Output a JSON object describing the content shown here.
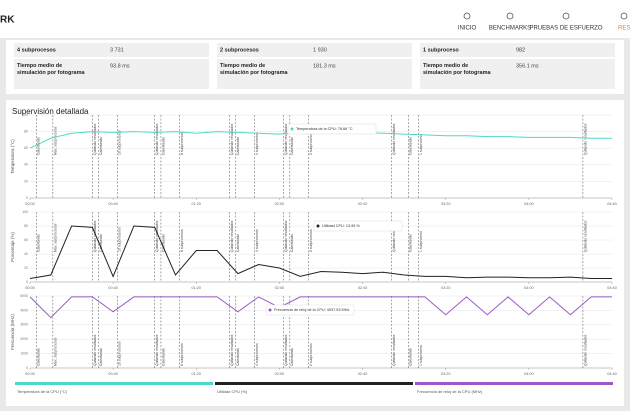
{
  "header": {
    "logo": "RK",
    "nav": [
      "INICIO",
      "BENCHMARKS",
      "PRUEBAS DE ESFUERZO",
      "RESU"
    ]
  },
  "stats": [
    {
      "label": "4 subprocesos",
      "value": "3 731",
      "time_label": "Tiempo medio de simulación por fotograma",
      "time_value": "93.8 ms"
    },
    {
      "label": "2 subprocesos",
      "value": "1 930",
      "time_label": "Tiempo medio de simulación por fotograma",
      "time_value": "181.3 ms"
    },
    {
      "label": "1 subproceso",
      "value": "982",
      "time_label": "Tiempo medio de simulación por fotograma",
      "time_value": "356.1 ms"
    }
  ],
  "section_title": "Supervisión detallada",
  "phases": [
    {
      "x": 3,
      "label": "Calentando"
    },
    {
      "x": 11,
      "label": "Máx. subprocesos"
    },
    {
      "x": 30,
      "label": "Quitando resultados"
    },
    {
      "x": 33,
      "label": "Calentando"
    },
    {
      "x": 42,
      "label": "16 subprocesos"
    },
    {
      "x": 60,
      "label": "Quitando resultados"
    },
    {
      "x": 63,
      "label": "Calentando"
    },
    {
      "x": 72,
      "label": "8 subprocesos"
    },
    {
      "x": 96,
      "label": "Quitando resultados"
    },
    {
      "x": 99,
      "label": "Calentando"
    },
    {
      "x": 108,
      "label": "4 subprocesos"
    },
    {
      "x": 122,
      "label": "Quitando resultados"
    },
    {
      "x": 125,
      "label": "Calentando"
    },
    {
      "x": 134,
      "label": "2 subprocesos"
    },
    {
      "x": 174,
      "label": "Quitando resultados"
    },
    {
      "x": 182,
      "label": "Calentando"
    },
    {
      "x": 187,
      "label": "1 subproceso"
    },
    {
      "x": 266,
      "label": "Quitando resultados"
    }
  ],
  "chart_data": [
    {
      "type": "line",
      "ylabel": "Temperatura (°C)",
      "annotation": "Temperatura de la CPU: 78.66 °C",
      "x": [
        0,
        10,
        20,
        30,
        40,
        50,
        60,
        70,
        80,
        90,
        100,
        110,
        120,
        130,
        140,
        150,
        160,
        170,
        180,
        190,
        200,
        210,
        220,
        230,
        240,
        250,
        260,
        270,
        280
      ],
      "xlim": [
        0,
        280
      ],
      "xticks": [
        {
          "value": 0,
          "label": "00:00"
        },
        {
          "value": 40,
          "label": "00:40"
        },
        {
          "value": 80,
          "label": "01:20"
        },
        {
          "value": 120,
          "label": "02:00"
        },
        {
          "value": 160,
          "label": "02:40"
        },
        {
          "value": 200,
          "label": "03:20"
        },
        {
          "value": 240,
          "label": "04:00"
        },
        {
          "value": 280,
          "label": "04:40"
        }
      ],
      "ylim": [
        0,
        100
      ],
      "yticks": [
        0,
        20,
        40,
        60,
        80,
        100
      ],
      "series": [
        {
          "name": "Temperatura de la CPU (°C)",
          "color": "#4fd8c8",
          "values": [
            60,
            72,
            78,
            80,
            79,
            80,
            79,
            80,
            78,
            80,
            79,
            78,
            77,
            79,
            78,
            80,
            79,
            78,
            77,
            76,
            75,
            75,
            74,
            74,
            73,
            73,
            73,
            72,
            72
          ]
        }
      ]
    },
    {
      "type": "line",
      "ylabel": "Porcentaje (%)",
      "annotation": "Utilidad CPU: 13.95 %",
      "x": [
        0,
        10,
        20,
        30,
        40,
        50,
        60,
        70,
        80,
        90,
        100,
        110,
        120,
        130,
        140,
        150,
        160,
        170,
        180,
        190,
        200,
        210,
        220,
        230,
        240,
        250,
        260,
        270,
        280
      ],
      "xlim": [
        0,
        280
      ],
      "xticks": [
        {
          "value": 0,
          "label": "00:00"
        },
        {
          "value": 40,
          "label": "00:40"
        },
        {
          "value": 80,
          "label": "01:20"
        },
        {
          "value": 120,
          "label": "02:00"
        },
        {
          "value": 160,
          "label": "02:40"
        },
        {
          "value": 200,
          "label": "03:20"
        },
        {
          "value": 240,
          "label": "04:00"
        },
        {
          "value": 280,
          "label": "04:40"
        }
      ],
      "ylim": [
        0,
        100
      ],
      "yticks": [
        0,
        20,
        40,
        60,
        80,
        100
      ],
      "series": [
        {
          "name": "Utilidad CPU (%)",
          "color": "#222222",
          "values": [
            5,
            10,
            80,
            78,
            8,
            80,
            78,
            10,
            45,
            45,
            12,
            25,
            20,
            8,
            15,
            14,
            12,
            14,
            10,
            8,
            8,
            6,
            7,
            7,
            6,
            6,
            7,
            5,
            5
          ]
        }
      ]
    },
    {
      "type": "line",
      "ylabel": "Frecuencia (MHz)",
      "annotation": "Frecuencia de reloj de la CPU: 4937.53 MHz",
      "x": [
        0,
        10,
        20,
        30,
        40,
        50,
        60,
        70,
        80,
        90,
        100,
        110,
        120,
        130,
        140,
        150,
        160,
        170,
        180,
        190,
        200,
        210,
        220,
        230,
        240,
        250,
        260,
        270,
        280
      ],
      "xlim": [
        0,
        280
      ],
      "xticks": [
        {
          "value": 0,
          "label": "00:00"
        },
        {
          "value": 40,
          "label": "00:40"
        },
        {
          "value": 80,
          "label": "01:20"
        },
        {
          "value": 120,
          "label": "02:00"
        },
        {
          "value": 160,
          "label": "02:40"
        },
        {
          "value": 200,
          "label": "03:20"
        },
        {
          "value": 240,
          "label": "04:00"
        },
        {
          "value": 280,
          "label": "04:40"
        }
      ],
      "ylim": [
        0,
        5000
      ],
      "yticks": [
        0,
        1000,
        2000,
        3000,
        4000,
        5000
      ],
      "series": [
        {
          "name": "Frecuencia de reloj de la CPU (MHz)",
          "color": "#9b59c6",
          "values": [
            4937,
            3500,
            4937,
            4937,
            3900,
            4937,
            4937,
            4937,
            4937,
            4937,
            3900,
            4937,
            4200,
            4937,
            4937,
            4937,
            4937,
            4937,
            4937,
            4937,
            3700,
            4937,
            3700,
            4937,
            3700,
            4937,
            3700,
            4937,
            4937
          ]
        }
      ]
    }
  ]
}
